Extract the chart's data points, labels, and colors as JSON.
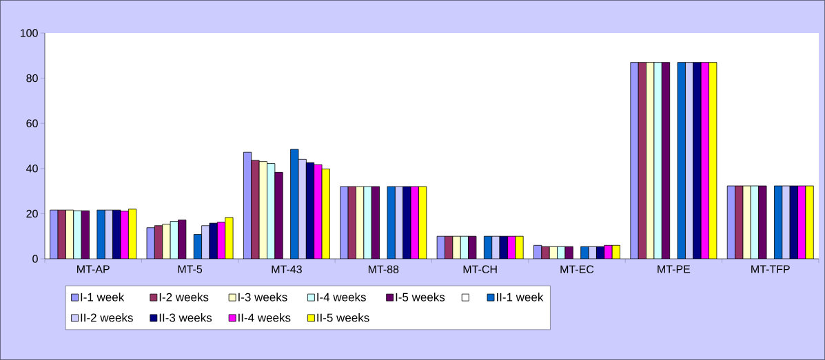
{
  "chart_data": {
    "type": "bar",
    "categories": [
      "MT-AP",
      "MT-5",
      "MT-43",
      "MT-88",
      "MT-CH",
      "MT-EC",
      "MT-PE",
      "MT-TFP"
    ],
    "ylim": [
      0,
      100
    ],
    "yticks": [
      0,
      20,
      40,
      60,
      80,
      100
    ],
    "grid": false,
    "legend": "bottom",
    "series": [
      {
        "name": "I-1 week",
        "color": "#9999ff",
        "values": [
          21.6,
          13.8,
          47.2,
          32,
          10,
          6.0,
          87,
          32.3
        ]
      },
      {
        "name": "I-2 weeks",
        "color": "#993366",
        "values": [
          21.6,
          14.7,
          43.6,
          32,
          10,
          5.4,
          87,
          32.3
        ]
      },
      {
        "name": "I-3 weeks",
        "color": "#ffffcc",
        "values": [
          21.6,
          15.3,
          43.1,
          32,
          10,
          5.4,
          87,
          32.3
        ]
      },
      {
        "name": "I-4 weeks",
        "color": "#ccffff",
        "values": [
          21.3,
          16.6,
          42.2,
          32,
          10,
          5.4,
          87,
          32.3
        ]
      },
      {
        "name": "I-5 weeks",
        "color": "#660066",
        "values": [
          21.3,
          17.2,
          38.3,
          32,
          10,
          5.4,
          87,
          32.3
        ]
      },
      {
        "color": "#ffffff",
        "values": [
          null,
          null,
          null,
          null,
          null,
          null,
          null,
          null
        ]
      },
      {
        "name": "II-1 week",
        "color": "#0066cc",
        "values": [
          21.6,
          10.8,
          48.5,
          32,
          10,
          5.4,
          87,
          32.3
        ]
      },
      {
        "name": "II-2 weeks",
        "color": "#ccccff",
        "values": [
          21.6,
          14.7,
          44.1,
          32,
          10,
          5.4,
          87,
          32.3
        ]
      },
      {
        "name": "II-3 weeks",
        "color": "#000080",
        "values": [
          21.6,
          15.8,
          42.6,
          32,
          10,
          5.4,
          87,
          32.3
        ]
      },
      {
        "name": "II-4 weeks",
        "color": "#ff00ff",
        "values": [
          21.1,
          16.2,
          41.7,
          32,
          10,
          6.0,
          87,
          32.3
        ]
      },
      {
        "name": "II-5 weeks",
        "color": "#ffff00",
        "values": [
          22.0,
          18.3,
          39.8,
          32,
          10,
          6.0,
          87,
          32.3
        ]
      }
    ]
  }
}
